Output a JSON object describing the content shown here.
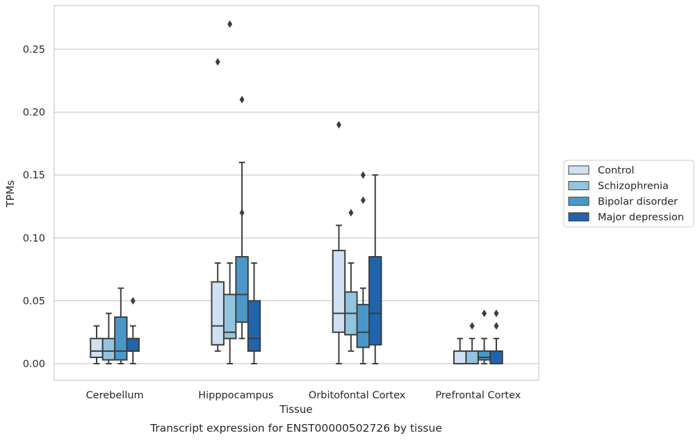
{
  "chart_data": {
    "type": "boxplot",
    "xlabel": "Tissue",
    "ylabel": "TPMs",
    "caption": "Transcript expression for ENST00000502726 by tissue",
    "ylim": [
      -0.013,
      0.285
    ],
    "yticks": [
      0.0,
      0.05,
      0.1,
      0.15,
      0.2,
      0.25
    ],
    "ytick_labels": [
      "0.00",
      "0.05",
      "0.10",
      "0.15",
      "0.20",
      "0.25"
    ],
    "grid": "horizontal",
    "legend_position": "right",
    "categories": [
      "Cerebellum",
      "Hipppocampus",
      "Orbitofontal Cortex",
      "Prefrontal Cortex"
    ],
    "series": [
      {
        "name": "Control",
        "color": "#cfe1f2",
        "boxes": [
          {
            "whislo": 0.0,
            "q1": 0.005,
            "med": 0.01,
            "q3": 0.02,
            "whishi": 0.03,
            "fliers": []
          },
          {
            "whislo": 0.01,
            "q1": 0.015,
            "med": 0.03,
            "q3": 0.065,
            "whishi": 0.08,
            "fliers": [
              0.24
            ]
          },
          {
            "whislo": 0.0,
            "q1": 0.025,
            "med": 0.04,
            "q3": 0.09,
            "whishi": 0.11,
            "fliers": [
              0.19
            ]
          },
          {
            "whislo": 0.0,
            "q1": 0.0,
            "med": 0.0,
            "q3": 0.01,
            "whishi": 0.02,
            "fliers": []
          }
        ]
      },
      {
        "name": "Schizophrenia",
        "color": "#93c4de",
        "boxes": [
          {
            "whislo": 0.0,
            "q1": 0.003,
            "med": 0.01,
            "q3": 0.02,
            "whishi": 0.04,
            "fliers": []
          },
          {
            "whislo": 0.0,
            "q1": 0.02,
            "med": 0.025,
            "q3": 0.055,
            "whishi": 0.08,
            "fliers": [
              0.27
            ]
          },
          {
            "whislo": 0.01,
            "q1": 0.023,
            "med": 0.04,
            "q3": 0.057,
            "whishi": 0.08,
            "fliers": [
              0.12
            ]
          },
          {
            "whislo": 0.0,
            "q1": 0.0,
            "med": 0.0,
            "q3": 0.01,
            "whishi": 0.02,
            "fliers": [
              0.03
            ]
          }
        ]
      },
      {
        "name": "Bipolar disorder",
        "color": "#4a98c9",
        "boxes": [
          {
            "whislo": 0.0,
            "q1": 0.003,
            "med": 0.01,
            "q3": 0.037,
            "whishi": 0.06,
            "fliers": []
          },
          {
            "whislo": 0.02,
            "q1": 0.033,
            "med": 0.055,
            "q3": 0.085,
            "whishi": 0.16,
            "fliers": [
              0.21,
              0.12
            ]
          },
          {
            "whislo": 0.0,
            "q1": 0.013,
            "med": 0.025,
            "q3": 0.047,
            "whishi": 0.06,
            "fliers": [
              0.15,
              0.13
            ]
          },
          {
            "whislo": 0.0,
            "q1": 0.003,
            "med": 0.005,
            "q3": 0.01,
            "whishi": 0.02,
            "fliers": [
              0.04
            ]
          }
        ]
      },
      {
        "name": "Major depression",
        "color": "#2164ab",
        "boxes": [
          {
            "whislo": 0.0,
            "q1": 0.01,
            "med": 0.01,
            "q3": 0.02,
            "whishi": 0.03,
            "fliers": [
              0.05
            ]
          },
          {
            "whislo": 0.0,
            "q1": 0.01,
            "med": 0.02,
            "q3": 0.05,
            "whishi": 0.08,
            "fliers": []
          },
          {
            "whislo": 0.0,
            "q1": 0.015,
            "med": 0.04,
            "q3": 0.085,
            "whishi": 0.15,
            "fliers": []
          },
          {
            "whislo": 0.0,
            "q1": 0.0,
            "med": 0.0,
            "q3": 0.01,
            "whishi": 0.02,
            "fliers": [
              0.04,
              0.03
            ]
          }
        ]
      }
    ]
  }
}
